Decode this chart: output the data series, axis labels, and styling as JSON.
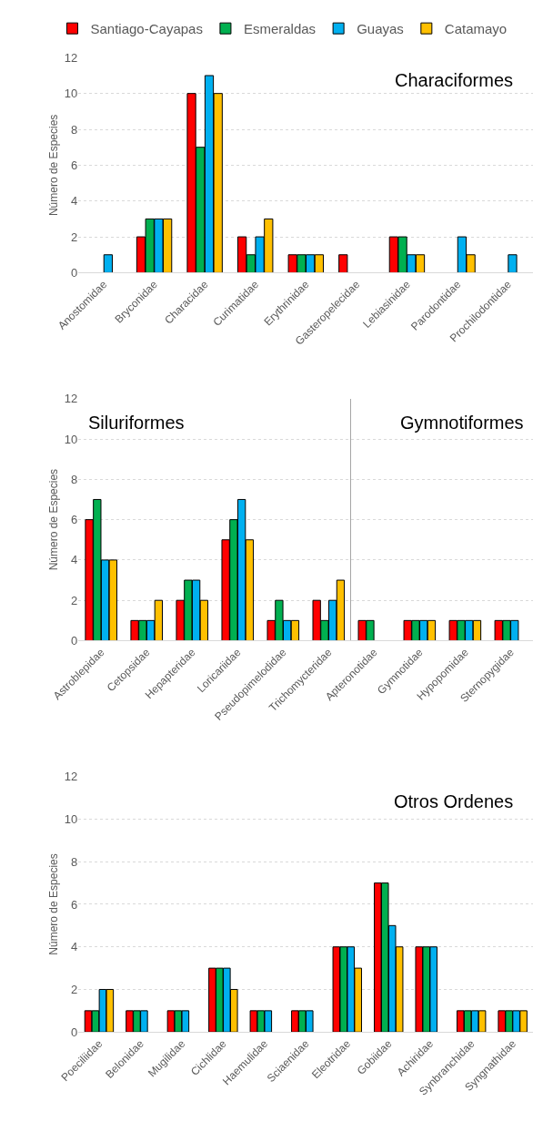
{
  "chart_data": [
    {
      "type": "bar",
      "title": "Characiformes",
      "ylabel": "Número de Especies",
      "legend": "top",
      "grid": "y",
      "ylim": [
        0,
        12
      ],
      "yticks": [
        0,
        2,
        4,
        6,
        8,
        10,
        12
      ],
      "categories": [
        "Anostomidae",
        "Bryconidae",
        "Characidae",
        "Curimatidae",
        "Erythrinidae",
        "Gasteropelecidae",
        "Lebiasinidae",
        "Parodontidae",
        "Prochilodontidae"
      ],
      "series": [
        {
          "name": "Santiago-Cayapas",
          "color": "#ff0000",
          "values": [
            null,
            2,
            10,
            2,
            1,
            1,
            2,
            null,
            null
          ]
        },
        {
          "name": "Esmeraldas",
          "color": "#00b050",
          "values": [
            null,
            3,
            7,
            1,
            1,
            null,
            2,
            null,
            null
          ]
        },
        {
          "name": "Guayas",
          "color": "#00b0f0",
          "values": [
            1,
            3,
            11,
            2,
            1,
            null,
            1,
            2,
            1
          ]
        },
        {
          "name": "Catamayo",
          "color": "#ffc000",
          "values": [
            null,
            3,
            10,
            3,
            1,
            null,
            1,
            1,
            null
          ]
        }
      ]
    },
    {
      "type": "bar",
      "title": "Siluriformes",
      "ylabel": "Número de Especies",
      "grid": "y",
      "ylim": [
        0,
        12
      ],
      "yticks": [
        0,
        2,
        4,
        6,
        8,
        10,
        12
      ],
      "categories": [
        "Astroblepidae",
        "Cetopsidae",
        "Hepapteridae",
        "Loricariidae",
        "Pseudopimelodidae",
        "Trichomycteridae"
      ],
      "series": [
        {
          "color": "#ff0000",
          "values": [
            6,
            1,
            2,
            5,
            1,
            2
          ]
        },
        {
          "color": "#00b050",
          "values": [
            7,
            1,
            3,
            6,
            2,
            1
          ]
        },
        {
          "color": "#00b0f0",
          "values": [
            4,
            1,
            3,
            7,
            1,
            2
          ]
        },
        {
          "color": "#ffc000",
          "values": [
            4,
            2,
            2,
            5,
            1,
            3
          ]
        }
      ]
    },
    {
      "type": "bar",
      "title": "Gymnotiformes",
      "grid": "y",
      "tick_labels": "x",
      "ylim": [
        0,
        12
      ],
      "yticks": [
        0,
        2,
        4,
        6,
        8,
        10,
        12
      ],
      "categories": [
        "Apteronotidae",
        "Gymnotidae",
        "Hypopomidae",
        "Sternopygidae"
      ],
      "series": [
        {
          "color": "#ff0000",
          "values": [
            1,
            1,
            1,
            1
          ]
        },
        {
          "color": "#00b050",
          "values": [
            1,
            1,
            1,
            1
          ]
        },
        {
          "color": "#00b0f0",
          "values": [
            null,
            1,
            1,
            1
          ]
        },
        {
          "color": "#ffc000",
          "values": [
            null,
            1,
            1,
            null
          ]
        }
      ]
    },
    {
      "type": "bar",
      "title": "Otros Ordenes",
      "ylabel": "Número de Especies",
      "grid": "y",
      "ylim": [
        0,
        12
      ],
      "yticks": [
        0,
        2,
        4,
        6,
        8,
        10,
        12
      ],
      "categories": [
        "Poeciliidae",
        "Belonidae",
        "Mugilidae",
        "Cichlidae",
        "Haemulidae",
        "Sciaenidae",
        "Eleotridae",
        "Gobiidae",
        "Achiridae",
        "Synbranchidae",
        "Syngnathidae"
      ],
      "series": [
        {
          "color": "#ff0000",
          "values": [
            1,
            1,
            1,
            3,
            1,
            1,
            4,
            7,
            4,
            1,
            1
          ]
        },
        {
          "color": "#00b050",
          "values": [
            1,
            1,
            1,
            3,
            1,
            1,
            4,
            7,
            4,
            1,
            1
          ]
        },
        {
          "color": "#00b0f0",
          "values": [
            2,
            1,
            1,
            3,
            1,
            1,
            4,
            5,
            4,
            1,
            1
          ]
        },
        {
          "color": "#ffc000",
          "values": [
            2,
            null,
            null,
            2,
            null,
            null,
            3,
            4,
            null,
            1,
            1
          ]
        }
      ]
    }
  ]
}
